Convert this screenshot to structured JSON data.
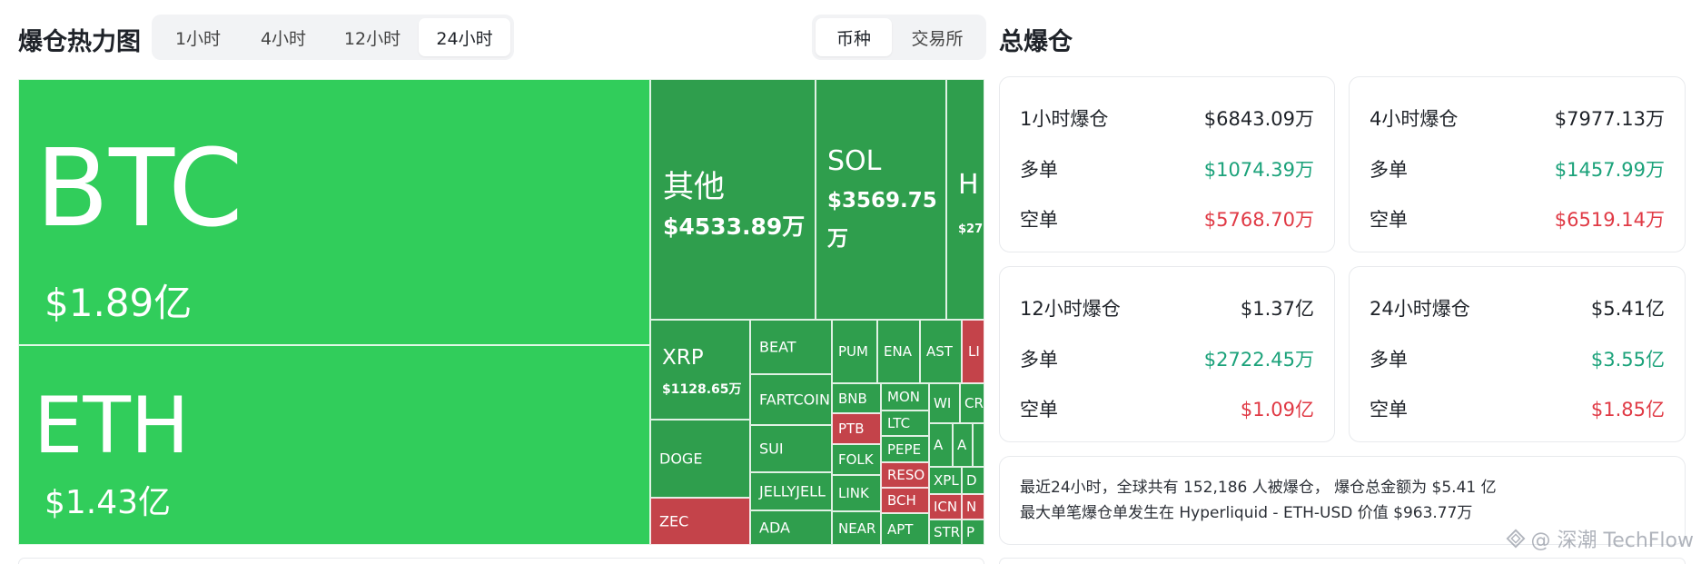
{
  "heatmap": {
    "title": "爆仓热力图",
    "timeframes": [
      "1小时",
      "4小时",
      "12小时",
      "24小时"
    ],
    "active_timeframe": "24小时",
    "groupings": [
      "币种",
      "交易所"
    ],
    "active_grouping": "币种"
  },
  "treemap": {
    "btc": {
      "symbol": "BTC",
      "amount": "$1.89亿"
    },
    "eth": {
      "symbol": "ETH",
      "amount": "$1.43亿"
    },
    "other": {
      "symbol": "其他",
      "amount": "$4533.89万"
    },
    "sol": {
      "symbol": "SOL",
      "amount_line1": "$3569.75",
      "amount_line2": "万"
    },
    "hype": {
      "symbol": "H",
      "amount": "$27"
    },
    "xrp": {
      "symbol": "XRP",
      "amount": "$1128.65万"
    },
    "small": {
      "doge": "DOGE",
      "zec": "ZEC",
      "beat": "BEAT",
      "fartcoin": "FARTCOIN",
      "sui": "SUI",
      "jellyjelly": "JELLYJELL",
      "ada": "ADA",
      "pump": "PUM",
      "ena": "ENA",
      "aster": "AST",
      "li": "LI",
      "bnb": "BNB",
      "mon": "MON",
      "wi": "WI",
      "cr": "CR",
      "ptb": "PTB",
      "ltc": "LTC",
      "pepe": "PEPE",
      "a1": "A",
      "a2": "A",
      "folk": "FOLK",
      "reso": "RESO",
      "xpl": "XPL",
      "d": "D",
      "link": "LINK",
      "bch": "BCH",
      "icn": "ICN",
      "n": "N",
      "near": "NEAR",
      "apt": "APT",
      "str": "STR",
      "p": "P"
    }
  },
  "totals": {
    "title": "总爆仓",
    "long_label": "多单",
    "short_label": "空单",
    "cards": [
      {
        "label": "1小时爆仓",
        "total": "$6843.09万",
        "long": "$1074.39万",
        "short": "$5768.70万"
      },
      {
        "label": "4小时爆仓",
        "total": "$7977.13万",
        "long": "$1457.99万",
        "short": "$6519.14万"
      },
      {
        "label": "12小时爆仓",
        "total": "$1.37亿",
        "long": "$2722.45万",
        "short": "$1.09亿"
      },
      {
        "label": "24小时爆仓",
        "total": "$5.41亿",
        "long": "$3.55亿",
        "short": "$1.85亿"
      }
    ],
    "summary_line1": "最近24小时，全球共有 152,186 人被爆仓， 爆仓总金额为 $5.41 亿",
    "summary_line2": "最大单笔爆仓单发生在 Hyperliquid - ETH-USD 价值 $963.77万"
  },
  "watermark": "@ 深潮 TechFlow",
  "colors": {
    "green_large": "#31cd5b",
    "green_small": "#2f9e4d",
    "red": "#c4434a",
    "long": "#1ba27a",
    "short": "#e03a45"
  }
}
